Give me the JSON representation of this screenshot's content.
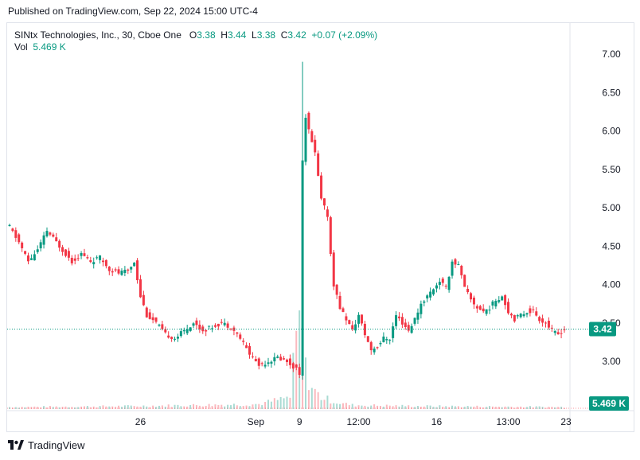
{
  "header": {
    "published": "Published on TradingView.com, Sep 22, 2024 15:00 UTC-4"
  },
  "legend": {
    "symbol": "SINtx Technologies, Inc., 30, Cboe One",
    "o_label": "O",
    "o_value": "3.38",
    "h_label": "H",
    "h_value": "3.44",
    "l_label": "L",
    "l_value": "3.38",
    "c_label": "C",
    "c_value": "3.42",
    "change": "+0.07 (+2.09%)",
    "vol_label": "Vol",
    "vol_value": "5.469 K"
  },
  "footer": {
    "brand": "TradingView"
  },
  "colors": {
    "up": "#089981",
    "down": "#f23645",
    "grid": "#f0f3fa",
    "axis_text": "#131722",
    "badge": "#089981"
  },
  "chart_data": {
    "type": "candlestick",
    "title": "SINtx Technologies, Inc., 30, Cboe One",
    "interval": "30",
    "y_ticks": [
      "7.00",
      "6.50",
      "6.00",
      "5.50",
      "5.00",
      "4.50",
      "4.00",
      "3.50",
      "3.00"
    ],
    "ylim": [
      2.4,
      7.3
    ],
    "x_ticks": [
      "26",
      "Sep",
      "9",
      "12:00",
      "16",
      "13:00",
      "23"
    ],
    "last_price": "3.42",
    "last_volume": "5.469 K",
    "grid": false,
    "price_path": [
      [
        0,
        4.75
      ],
      [
        3,
        4.55
      ],
      [
        6,
        4.3
      ],
      [
        9,
        4.45
      ],
      [
        12,
        4.7
      ],
      [
        14,
        4.6
      ],
      [
        17,
        4.45
      ],
      [
        20,
        4.3
      ],
      [
        23,
        4.4
      ],
      [
        26,
        4.3
      ],
      [
        29,
        4.35
      ],
      [
        32,
        4.2
      ],
      [
        35,
        4.15
      ],
      [
        38,
        4.18
      ],
      [
        40,
        4.3
      ],
      [
        42,
        3.85
      ],
      [
        44,
        3.6
      ],
      [
        47,
        3.5
      ],
      [
        50,
        3.35
      ],
      [
        53,
        3.3
      ],
      [
        56,
        3.4
      ],
      [
        59,
        3.5
      ],
      [
        62,
        3.4
      ],
      [
        65,
        3.45
      ],
      [
        68,
        3.5
      ],
      [
        71,
        3.45
      ],
      [
        74,
        3.3
      ],
      [
        77,
        3.1
      ],
      [
        80,
        2.95
      ],
      [
        83,
        3.0
      ],
      [
        86,
        3.05
      ],
      [
        89,
        3.0
      ],
      [
        92,
        2.9
      ],
      [
        93,
        2.85
      ],
      [
        94,
        5.6
      ],
      [
        95,
        6.2
      ],
      [
        96,
        6.0
      ],
      [
        98,
        5.7
      ],
      [
        100,
        5.1
      ],
      [
        102,
        4.9
      ],
      [
        103,
        4.4
      ],
      [
        104,
        4.0
      ],
      [
        106,
        3.7
      ],
      [
        108,
        3.55
      ],
      [
        110,
        3.4
      ],
      [
        112,
        3.6
      ],
      [
        114,
        3.35
      ],
      [
        116,
        3.15
      ],
      [
        118,
        3.2
      ],
      [
        120,
        3.3
      ],
      [
        122,
        3.3
      ],
      [
        124,
        3.6
      ],
      [
        126,
        3.5
      ],
      [
        128,
        3.4
      ],
      [
        130,
        3.55
      ],
      [
        132,
        3.75
      ],
      [
        134,
        3.85
      ],
      [
        136,
        3.95
      ],
      [
        138,
        4.05
      ],
      [
        140,
        3.95
      ],
      [
        142,
        4.3
      ],
      [
        144,
        4.25
      ],
      [
        146,
        3.95
      ],
      [
        148,
        3.8
      ],
      [
        150,
        3.7
      ],
      [
        152,
        3.65
      ],
      [
        154,
        3.7
      ],
      [
        156,
        3.8
      ],
      [
        158,
        3.85
      ],
      [
        160,
        3.65
      ],
      [
        162,
        3.55
      ],
      [
        164,
        3.6
      ],
      [
        166,
        3.65
      ],
      [
        168,
        3.65
      ],
      [
        170,
        3.55
      ],
      [
        172,
        3.5
      ],
      [
        174,
        3.4
      ],
      [
        176,
        3.35
      ],
      [
        178,
        3.42
      ]
    ],
    "volume_path": [
      [
        0,
        0.02
      ],
      [
        40,
        0.03
      ],
      [
        80,
        0.05
      ],
      [
        90,
        0.12
      ],
      [
        93,
        1.0
      ],
      [
        94,
        0.55
      ],
      [
        95,
        0.4
      ],
      [
        96,
        0.3
      ],
      [
        97,
        0.22
      ],
      [
        98,
        0.18
      ],
      [
        100,
        0.12
      ],
      [
        102,
        0.1
      ],
      [
        104,
        0.08
      ],
      [
        106,
        0.06
      ],
      [
        110,
        0.04
      ],
      [
        130,
        0.03
      ],
      [
        178,
        0.02
      ]
    ]
  }
}
